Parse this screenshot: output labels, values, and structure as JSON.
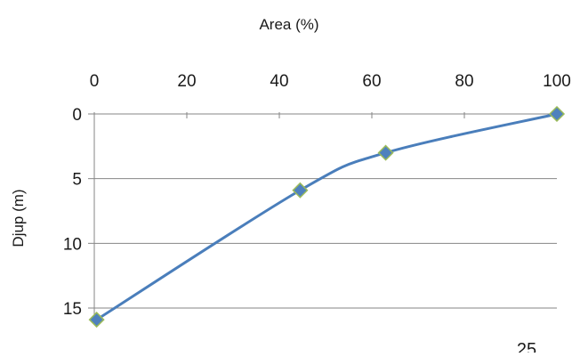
{
  "chart_data": {
    "type": "line",
    "xlabel": "Area (%)",
    "ylabel": "Djup (m)",
    "x_axis_position": "top",
    "y_axis_inverted": true,
    "xlim": [
      0,
      100
    ],
    "ylim": [
      0,
      16
    ],
    "x_ticks": [
      0,
      20,
      40,
      60,
      80,
      100
    ],
    "y_ticks": [
      0,
      5,
      10,
      15
    ],
    "x_tick_labels": [
      "0",
      "20",
      "40",
      "60",
      "80",
      "100"
    ],
    "y_tick_labels": [
      "0",
      "5",
      "10",
      "15"
    ],
    "grid": "horizontal",
    "smooth": true,
    "marker": "diamond",
    "series": [
      {
        "x": [
          100,
          63,
          44.5,
          0.5
        ],
        "y": [
          0,
          3,
          5.9,
          15.9
        ],
        "color": "#4a7ebb",
        "marker_color": "#4f81bd",
        "marker_edge_color": "#9bbb59"
      }
    ]
  },
  "page_number": "25"
}
